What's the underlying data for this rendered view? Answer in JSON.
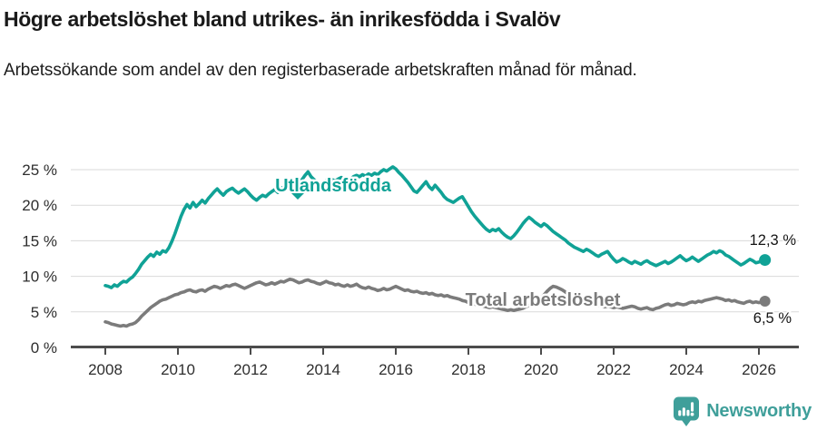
{
  "header": {
    "title": "Högre arbetslöshet bland utrikes- än inrikesfödda i Svalöv",
    "subtitle": "Arbetssökande som andel av den registerbaserade arbetskraften månad för månad."
  },
  "footer": {
    "brand": "Newsworthy"
  },
  "colors": {
    "accent_teal": "#10a296",
    "line_gray": "#7b7b7b",
    "grid": "#dadada",
    "axis": "#4c4c4c",
    "tick_text": "#2e2e2e",
    "value_text": "#141414",
    "brand_teal": "#3f9f9a"
  },
  "chart_data": {
    "type": "line",
    "title": "Högre arbetslöshet bland utrikes- än inrikesfödda i Svalöv",
    "subtitle": "Arbetssökande som andel av den registerbaserade arbetskraften månad för månad.",
    "xlabel": "",
    "ylabel": "",
    "ylim": [
      0,
      25
    ],
    "grid": true,
    "legend_position": "inline-labels",
    "x_ticks": [
      2008,
      2010,
      2012,
      2014,
      2016,
      2018,
      2020,
      2022,
      2024,
      2026
    ],
    "x_tick_labels": [
      "2008",
      "2010",
      "2012",
      "2014",
      "2016",
      "2018",
      "2020",
      "2022",
      "2024",
      "2026"
    ],
    "y_ticks": [
      0,
      5,
      10,
      15,
      20,
      25
    ],
    "y_tick_labels": [
      "0 %",
      "5 %",
      "10 %",
      "15 %",
      "20 %",
      "25 %"
    ],
    "series": [
      {
        "name": "Utlandsfödda",
        "color": "#10a296",
        "end_label": "12,3 %",
        "end_value": 12.3,
        "start_year": 2008.0,
        "step_months": 1,
        "values": [
          8.7,
          8.6,
          8.4,
          8.8,
          8.6,
          9.0,
          9.3,
          9.2,
          9.6,
          9.9,
          10.4,
          11.0,
          11.7,
          12.2,
          12.7,
          13.1,
          12.8,
          13.4,
          13.1,
          13.6,
          13.4,
          14.0,
          14.9,
          16.0,
          17.2,
          18.4,
          19.4,
          20.1,
          19.6,
          20.4,
          19.8,
          20.2,
          20.7,
          20.3,
          20.9,
          21.4,
          21.9,
          22.3,
          21.8,
          21.4,
          21.9,
          22.2,
          22.4,
          22.0,
          21.7,
          22.0,
          22.3,
          21.9,
          21.4,
          21.0,
          20.7,
          21.1,
          21.4,
          21.2,
          21.6,
          21.9,
          22.2,
          21.8,
          22.3,
          22.6,
          22.4,
          22.8,
          23.0,
          23.3,
          23.1,
          23.6,
          24.2,
          24.7,
          24.0,
          23.6,
          23.3,
          23.0,
          23.2,
          23.5,
          23.2,
          23.6,
          23.4,
          23.7,
          23.9,
          23.6,
          23.4,
          23.7,
          24.0,
          24.2,
          24.0,
          24.3,
          24.1,
          24.4,
          24.2,
          24.5,
          24.3,
          24.7,
          25.0,
          24.8,
          25.1,
          25.4,
          25.1,
          24.6,
          24.2,
          23.7,
          23.2,
          22.6,
          22.0,
          21.8,
          22.3,
          22.8,
          23.3,
          22.6,
          22.2,
          22.8,
          22.3,
          21.8,
          21.2,
          20.8,
          20.6,
          20.4,
          20.7,
          21.0,
          21.2,
          20.5,
          19.8,
          19.1,
          18.5,
          18.0,
          17.5,
          17.0,
          16.6,
          16.3,
          16.6,
          16.4,
          16.7,
          16.2,
          15.8,
          15.5,
          15.3,
          15.7,
          16.2,
          16.8,
          17.4,
          17.9,
          18.3,
          18.0,
          17.6,
          17.3,
          17.0,
          17.4,
          17.1,
          16.7,
          16.3,
          16.0,
          15.7,
          15.4,
          15.1,
          14.7,
          14.4,
          14.1,
          13.9,
          13.7,
          13.5,
          13.8,
          13.6,
          13.3,
          13.0,
          12.8,
          13.1,
          13.3,
          13.5,
          12.9,
          12.4,
          12.0,
          12.2,
          12.5,
          12.3,
          12.0,
          11.8,
          12.1,
          11.9,
          11.7,
          12.0,
          12.2,
          11.9,
          11.7,
          11.5,
          11.7,
          11.9,
          12.1,
          11.8,
          12.0,
          12.3,
          12.6,
          12.9,
          12.5,
          12.2,
          12.4,
          12.7,
          12.4,
          12.1,
          12.4,
          12.7,
          13.0,
          13.2,
          13.5,
          13.3,
          13.6,
          13.4,
          13.0,
          12.8,
          12.5,
          12.2,
          11.9,
          11.6,
          11.8,
          12.1,
          12.4,
          12.2,
          11.9,
          12.0,
          12.2,
          12.3
        ]
      },
      {
        "name": "Total arbetslöshet",
        "color": "#7b7b7b",
        "end_label": "6,5 %",
        "end_value": 6.5,
        "start_year": 2008.0,
        "step_months": 1,
        "values": [
          3.6,
          3.5,
          3.3,
          3.2,
          3.1,
          3.0,
          3.1,
          3.0,
          3.2,
          3.3,
          3.5,
          3.9,
          4.4,
          4.8,
          5.2,
          5.6,
          5.9,
          6.2,
          6.5,
          6.7,
          6.8,
          7.0,
          7.2,
          7.4,
          7.5,
          7.7,
          7.8,
          8.0,
          8.1,
          7.9,
          7.8,
          8.0,
          8.1,
          7.9,
          8.2,
          8.4,
          8.6,
          8.5,
          8.3,
          8.5,
          8.7,
          8.6,
          8.8,
          8.9,
          8.7,
          8.5,
          8.3,
          8.5,
          8.7,
          8.9,
          9.1,
          9.2,
          9.0,
          8.8,
          8.9,
          9.1,
          8.9,
          9.1,
          9.3,
          9.2,
          9.4,
          9.6,
          9.5,
          9.3,
          9.1,
          9.2,
          9.4,
          9.5,
          9.3,
          9.2,
          9.0,
          8.9,
          9.1,
          9.3,
          9.1,
          9.0,
          8.8,
          8.9,
          8.7,
          8.6,
          8.8,
          8.6,
          8.7,
          8.9,
          8.6,
          8.4,
          8.3,
          8.5,
          8.3,
          8.2,
          8.0,
          8.1,
          8.3,
          8.1,
          8.2,
          8.4,
          8.6,
          8.4,
          8.2,
          8.0,
          8.1,
          7.9,
          7.8,
          7.9,
          7.7,
          7.6,
          7.7,
          7.5,
          7.6,
          7.4,
          7.3,
          7.4,
          7.2,
          7.3,
          7.1,
          7.0,
          6.9,
          6.8,
          6.6,
          6.5,
          6.3,
          6.2,
          6.1,
          6.0,
          5.9,
          5.8,
          5.7,
          5.6,
          5.7,
          5.6,
          5.5,
          5.4,
          5.3,
          5.2,
          5.3,
          5.2,
          5.3,
          5.4,
          5.5,
          5.7,
          5.9,
          6.1,
          6.3,
          6.6,
          7.0,
          7.4,
          7.9,
          8.3,
          8.6,
          8.5,
          8.3,
          8.1,
          7.8,
          7.5,
          7.3,
          7.1,
          6.9,
          6.7,
          6.5,
          6.4,
          6.2,
          6.1,
          6.0,
          5.9,
          5.8,
          5.7,
          5.8,
          5.7,
          5.6,
          5.7,
          5.6,
          5.5,
          5.6,
          5.7,
          5.8,
          5.7,
          5.5,
          5.4,
          5.5,
          5.6,
          5.4,
          5.3,
          5.5,
          5.6,
          5.8,
          6.0,
          6.1,
          5.9,
          6.0,
          6.2,
          6.1,
          6.0,
          6.1,
          6.3,
          6.4,
          6.3,
          6.5,
          6.4,
          6.6,
          6.7,
          6.8,
          6.9,
          7.0,
          6.9,
          6.8,
          6.6,
          6.7,
          6.5,
          6.6,
          6.4,
          6.3,
          6.2,
          6.4,
          6.5,
          6.3,
          6.4,
          6.3,
          6.4,
          6.5
        ]
      }
    ]
  }
}
